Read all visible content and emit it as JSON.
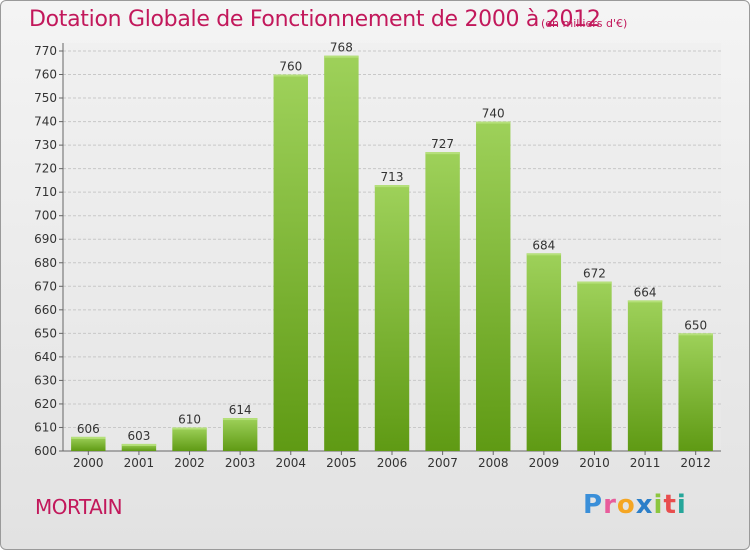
{
  "title": "Dotation Globale de Fonctionnement de 2000 à 2012",
  "subtitle": "(en milliers d'€)",
  "place": "MORTAIN",
  "logo": {
    "text": "Proxiti",
    "letters": [
      "P",
      "r",
      "o",
      "x",
      "i",
      "t",
      "i"
    ]
  },
  "colors": {
    "title": "#c2185b",
    "bar_top": "#9ed15a",
    "bar_bottom": "#5f9a14",
    "grid": "#c8c8c8"
  },
  "chart_data": {
    "type": "bar",
    "categories": [
      "2000",
      "2001",
      "2002",
      "2003",
      "2004",
      "2005",
      "2006",
      "2007",
      "2008",
      "2009",
      "2010",
      "2011",
      "2012"
    ],
    "values": [
      606,
      603,
      610,
      614,
      760,
      768,
      713,
      727,
      740,
      684,
      672,
      664,
      650
    ],
    "title": "Dotation Globale de Fonctionnement de 2000 à 2012",
    "subtitle": "(en milliers d'€)",
    "ylim": [
      600,
      770
    ],
    "yticks": [
      600,
      610,
      620,
      630,
      640,
      650,
      660,
      670,
      680,
      690,
      700,
      710,
      720,
      730,
      740,
      750,
      760,
      770
    ],
    "grid": true
  }
}
